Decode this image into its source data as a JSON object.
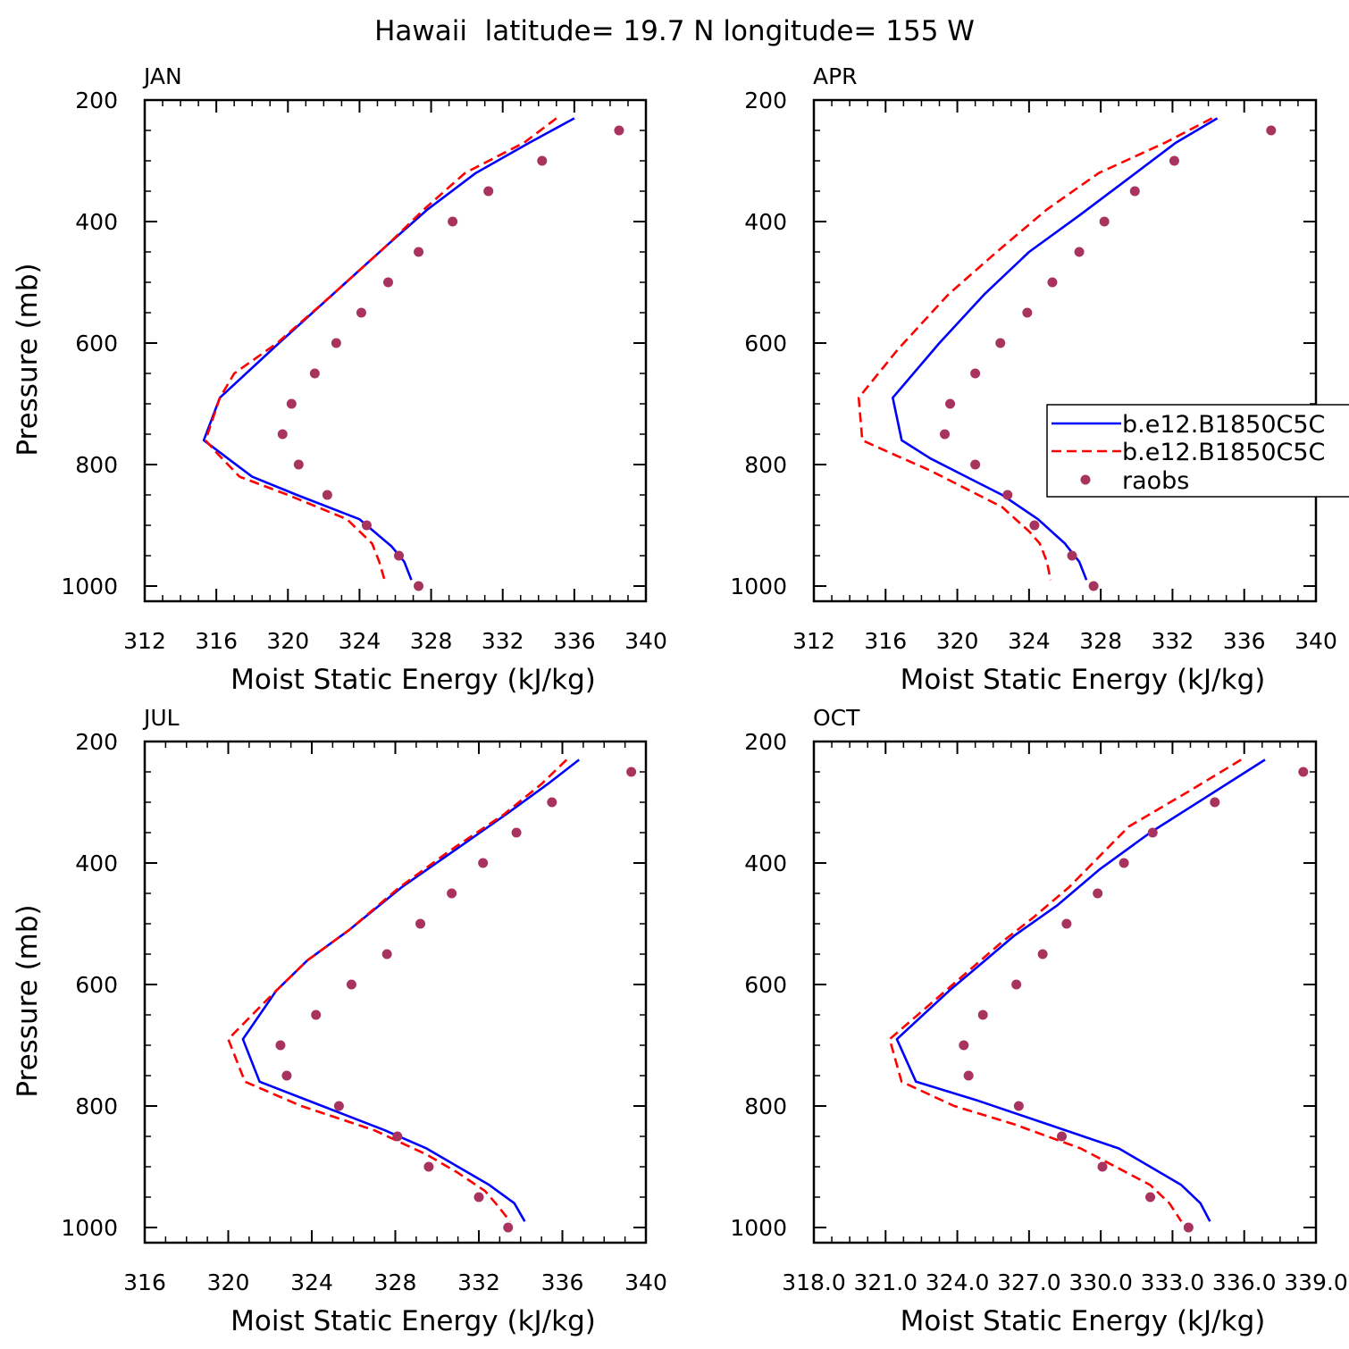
{
  "page": {
    "title": "Hawaii  latitude= 19.7 N longitude= 155 W"
  },
  "colors": {
    "model1": "#0000ff",
    "model2": "#ff0000",
    "raobs": "#a8335e",
    "axis": "#000000"
  },
  "legend": {
    "placement": "right-middle of APR panel (clipped by page edge)",
    "entries": [
      {
        "label": "b.e12.B1850C5C",
        "style": "solid",
        "color": "#0000ff"
      },
      {
        "label": "b.e12.B1850C5C",
        "style": "dashed",
        "color": "#ff0000"
      },
      {
        "label": "raobs",
        "style": "marker",
        "color": "#a8335e"
      }
    ]
  },
  "chart_data": [
    {
      "type": "line",
      "title": "JAN",
      "xlabel": "Moist Static Energy (kJ/kg)",
      "ylabel": "Pressure (mb)",
      "xlim": [
        312,
        340
      ],
      "ylim": [
        1025,
        200
      ],
      "xticks": [
        "312",
        "316",
        "320",
        "324",
        "328",
        "332",
        "336",
        "340"
      ],
      "yticks": [
        "200",
        "400",
        "600",
        "800",
        "1000"
      ],
      "series": [
        {
          "name": "b.e12.B1850C5C",
          "style": "solid",
          "points": [
            [
              336,
              230
            ],
            [
              333.5,
              270
            ],
            [
              330.5,
              320
            ],
            [
              327.8,
              380
            ],
            [
              325.5,
              440
            ],
            [
              322.5,
              520
            ],
            [
              319.5,
              600
            ],
            [
              316.2,
              690
            ],
            [
              315.3,
              760
            ],
            [
              318,
              820
            ],
            [
              320.5,
              850
            ],
            [
              324,
              890
            ],
            [
              325.8,
              935
            ],
            [
              326.5,
              960
            ],
            [
              326.9,
              990
            ]
          ]
        },
        {
          "name": "b.e12.B1850C5C",
          "style": "dashed",
          "points": [
            [
              335,
              230
            ],
            [
              333.2,
              270
            ],
            [
              329.9,
              320
            ],
            [
              327.6,
              380
            ],
            [
              325.5,
              440
            ],
            [
              322.5,
              520
            ],
            [
              319.4,
              600
            ],
            [
              317,
              650
            ],
            [
              316.2,
              690
            ],
            [
              315.4,
              760
            ],
            [
              316,
              780
            ],
            [
              317.3,
              820
            ],
            [
              320,
              850
            ],
            [
              323.3,
              890
            ],
            [
              324.7,
              930
            ],
            [
              325.1,
              960
            ],
            [
              325.4,
              990
            ]
          ]
        },
        {
          "name": "raobs",
          "style": "markers",
          "points": [
            [
              338.5,
              250
            ],
            [
              334.2,
              300
            ],
            [
              331.2,
              350
            ],
            [
              329.2,
              400
            ],
            [
              327.3,
              450
            ],
            [
              325.6,
              500
            ],
            [
              324.1,
              550
            ],
            [
              322.7,
              600
            ],
            [
              321.5,
              650
            ],
            [
              320.2,
              700
            ],
            [
              319.7,
              750
            ],
            [
              320.6,
              800
            ],
            [
              322.2,
              850
            ],
            [
              324.4,
              900
            ],
            [
              326.2,
              950
            ],
            [
              327.3,
              1000
            ]
          ]
        }
      ]
    },
    {
      "type": "line",
      "title": "APR",
      "xlabel": "Moist Static Energy (kJ/kg)",
      "ylabel": "",
      "xlim": [
        312,
        340
      ],
      "ylim": [
        1025,
        200
      ],
      "xticks": [
        "312",
        "316",
        "320",
        "324",
        "328",
        "332",
        "336",
        "340"
      ],
      "yticks": [
        "200",
        "400",
        "600",
        "800",
        "1000"
      ],
      "series": [
        {
          "name": "b.e12.B1850C5C",
          "style": "solid",
          "points": [
            [
              334.5,
              230
            ],
            [
              332.2,
              270
            ],
            [
              329.5,
              330
            ],
            [
              326.8,
              390
            ],
            [
              324,
              450
            ],
            [
              321.5,
              520
            ],
            [
              319,
              600
            ],
            [
              316.4,
              690
            ],
            [
              316.9,
              760
            ],
            [
              318.5,
              790
            ],
            [
              320.5,
              820
            ],
            [
              322.5,
              850
            ],
            [
              324.5,
              890
            ],
            [
              326,
              930
            ],
            [
              326.8,
              960
            ],
            [
              327.2,
              990
            ]
          ]
        },
        {
          "name": "b.e12.B1850C5C",
          "style": "dashed",
          "points": [
            [
              334.2,
              230
            ],
            [
              331.6,
              270
            ],
            [
              327.9,
              320
            ],
            [
              325,
              380
            ],
            [
              322.2,
              450
            ],
            [
              319.5,
              520
            ],
            [
              316.7,
              610
            ],
            [
              314.5,
              690
            ],
            [
              314.7,
              760
            ],
            [
              316.2,
              780
            ],
            [
              318.5,
              810
            ],
            [
              320.5,
              840
            ],
            [
              322.5,
              870
            ],
            [
              324,
              910
            ],
            [
              324.6,
              930
            ],
            [
              325,
              960
            ],
            [
              325.2,
              990
            ]
          ]
        },
        {
          "name": "raobs",
          "style": "markers",
          "points": [
            [
              337.5,
              250
            ],
            [
              332.1,
              300
            ],
            [
              329.9,
              350
            ],
            [
              328.2,
              400
            ],
            [
              326.8,
              450
            ],
            [
              325.3,
              500
            ],
            [
              323.9,
              550
            ],
            [
              322.4,
              600
            ],
            [
              321,
              650
            ],
            [
              319.6,
              700
            ],
            [
              319.3,
              750
            ],
            [
              321,
              800
            ],
            [
              322.8,
              850
            ],
            [
              324.3,
              900
            ],
            [
              326.4,
              950
            ],
            [
              327.6,
              1000
            ]
          ]
        }
      ]
    },
    {
      "type": "line",
      "title": "JUL",
      "xlabel": "Moist Static Energy (kJ/kg)",
      "ylabel": "Pressure (mb)",
      "xlim": [
        316,
        340
      ],
      "ylim": [
        1025,
        200
      ],
      "xticks": [
        "316",
        "320",
        "324",
        "328",
        "332",
        "336",
        "340"
      ],
      "yticks": [
        "200",
        "400",
        "600",
        "800",
        "1000"
      ],
      "series": [
        {
          "name": "b.e12.B1850C5C",
          "style": "solid",
          "points": [
            [
              336.8,
              230
            ],
            [
              335.3,
              270
            ],
            [
              333.3,
              320
            ],
            [
              330.8,
              380
            ],
            [
              328.3,
              440
            ],
            [
              325.8,
              510
            ],
            [
              323.8,
              560
            ],
            [
              322.3,
              610
            ],
            [
              320.7,
              690
            ],
            [
              321.5,
              760
            ],
            [
              324.5,
              800
            ],
            [
              327.5,
              840
            ],
            [
              329.5,
              870
            ],
            [
              331,
              900
            ],
            [
              332.5,
              930
            ],
            [
              333.7,
              960
            ],
            [
              334.2,
              990
            ]
          ]
        },
        {
          "name": "b.e12.B1850C5C",
          "style": "dashed",
          "points": [
            [
              336.2,
              230
            ],
            [
              335,
              270
            ],
            [
              333.2,
              320
            ],
            [
              330.6,
              380
            ],
            [
              328.2,
              440
            ],
            [
              325.8,
              510
            ],
            [
              323.8,
              560
            ],
            [
              322,
              620
            ],
            [
              320,
              690
            ],
            [
              320.8,
              760
            ],
            [
              323.5,
              800
            ],
            [
              327,
              840
            ],
            [
              329.5,
              880
            ],
            [
              331,
              910
            ],
            [
              332.3,
              940
            ],
            [
              332.8,
              960
            ],
            [
              333.5,
              990
            ]
          ]
        },
        {
          "name": "raobs",
          "style": "markers",
          "points": [
            [
              339.3,
              250
            ],
            [
              335.5,
              300
            ],
            [
              333.8,
              350
            ],
            [
              332.2,
              400
            ],
            [
              330.7,
              450
            ],
            [
              329.2,
              500
            ],
            [
              327.6,
              550
            ],
            [
              325.9,
              600
            ],
            [
              324.2,
              650
            ],
            [
              322.5,
              700
            ],
            [
              322.8,
              750
            ],
            [
              325.3,
              800
            ],
            [
              328.1,
              850
            ],
            [
              329.6,
              900
            ],
            [
              332,
              950
            ],
            [
              333.4,
              1000
            ]
          ]
        }
      ]
    },
    {
      "type": "line",
      "title": "OCT",
      "xlabel": "Moist Static Energy (kJ/kg)",
      "ylabel": "",
      "xlim": [
        318.03,
        339.03
      ],
      "ylim": [
        1025,
        200
      ],
      "xticks": [
        "318.0",
        "321.0",
        "324.0",
        "327.0",
        "330.0",
        "333.0",
        "336.0",
        "339.0"
      ],
      "yticks": [
        "200",
        "400",
        "600",
        "800",
        "1000"
      ],
      "series": [
        {
          "name": "b.e12.B1850C5C",
          "style": "solid",
          "points": [
            [
              336.9,
              230
            ],
            [
              334.5,
              290
            ],
            [
              332.1,
              350
            ],
            [
              330,
              410
            ],
            [
              328.2,
              470
            ],
            [
              326.4,
              520
            ],
            [
              324.9,
              570
            ],
            [
              323.7,
              610
            ],
            [
              321.5,
              690
            ],
            [
              322.3,
              760
            ],
            [
              324.8,
              790
            ],
            [
              327.8,
              830
            ],
            [
              330.8,
              870
            ],
            [
              333.4,
              930
            ],
            [
              334.2,
              960
            ],
            [
              334.6,
              990
            ]
          ]
        },
        {
          "name": "b.e12.B1850C5C",
          "style": "dashed",
          "points": [
            [
              335.9,
              230
            ],
            [
              333.8,
              280
            ],
            [
              331.2,
              340
            ],
            [
              328.7,
              440
            ],
            [
              327.2,
              490
            ],
            [
              325.9,
              530
            ],
            [
              323.7,
              605
            ],
            [
              321.2,
              690
            ],
            [
              321.7,
              760
            ],
            [
              323.9,
              800
            ],
            [
              326.4,
              830
            ],
            [
              329.2,
              870
            ],
            [
              332.1,
              930
            ],
            [
              332.9,
              960
            ],
            [
              333.4,
              990
            ]
          ]
        },
        {
          "name": "raobs",
          "style": "markers",
          "points": [
            [
              338.5,
              250
            ],
            [
              334.8,
              300
            ],
            [
              332.2,
              350
            ],
            [
              331,
              400
            ],
            [
              329.9,
              450
            ],
            [
              328.6,
              500
            ],
            [
              327.6,
              550
            ],
            [
              326.5,
              600
            ],
            [
              325.1,
              650
            ],
            [
              324.3,
              700
            ],
            [
              324.5,
              750
            ],
            [
              326.6,
              800
            ],
            [
              328.4,
              850
            ],
            [
              330.1,
              900
            ],
            [
              332.1,
              950
            ],
            [
              333.7,
              1000
            ]
          ]
        }
      ]
    }
  ]
}
